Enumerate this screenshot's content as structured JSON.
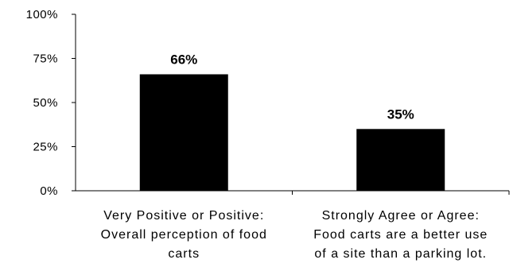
{
  "chart_data": {
    "type": "bar",
    "categories": [
      [
        "Very Positive or Positive:",
        "Overall perception of food",
        "carts"
      ],
      [
        "Strongly Agree or Agree:",
        "Food carts are a better use",
        "of a site than a parking lot."
      ]
    ],
    "values": [
      66,
      35
    ],
    "data_labels": [
      "66%",
      "35%"
    ],
    "y_ticks": [
      0,
      25,
      50,
      75,
      100
    ],
    "y_tick_labels": [
      "0%",
      "25%",
      "50%",
      "75%",
      "100%"
    ],
    "ylim": [
      0,
      100
    ],
    "grid": false,
    "legend": "none",
    "bar_color": "#000000"
  }
}
